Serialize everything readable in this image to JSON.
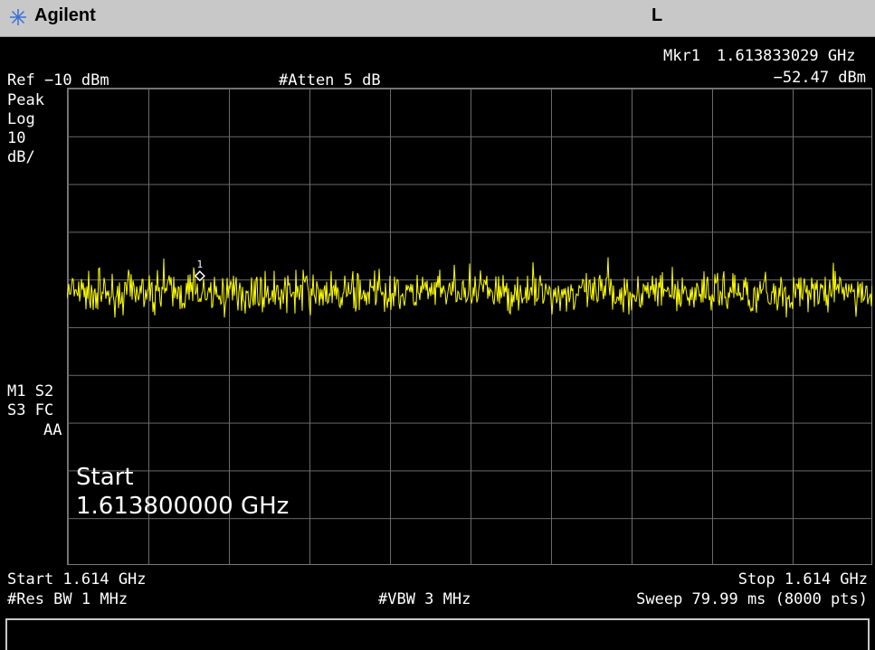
{
  "header": {
    "brand": "Agilent",
    "mode_indicator": "L",
    "logo_icon": "agilent-spark-icon"
  },
  "settings": {
    "ref_level": "Ref −10 dBm",
    "atten": "#Atten 5 dB",
    "detector": [
      "Peak",
      "Log",
      "10",
      "dB/"
    ]
  },
  "marker": {
    "label": "Mkr1",
    "freq": "1.613833029 GHz",
    "level": "−52.47 dBm",
    "number": "1"
  },
  "status_flags": [
    "M1  S2",
    "S3  FC",
    "AA"
  ],
  "overlay": {
    "start_label": "Start",
    "start_value": "1.613800000 GHz"
  },
  "footer": {
    "start": "Start 1.614 GHz",
    "stop": "Stop 1.614 GHz",
    "res_bw": "#Res BW 1 MHz",
    "vbw": "#VBW 3 MHz",
    "sweep": "Sweep 79.99 ms (8000 pts)"
  },
  "chart_data": {
    "type": "line",
    "ref_level_dbm": -10,
    "scale_db_per_div": 10,
    "ylim": [
      -110,
      -10
    ],
    "y_divisions": 10,
    "x_divisions": 10,
    "noise_floor_dbm": -53,
    "noise_spread_db": 4,
    "marker": {
      "x_fraction": 0.165,
      "level_dbm": -52.47
    },
    "colors": {
      "trace": "#ffff00",
      "grid": "#6a6a6a",
      "marker": "#ffffff"
    }
  }
}
